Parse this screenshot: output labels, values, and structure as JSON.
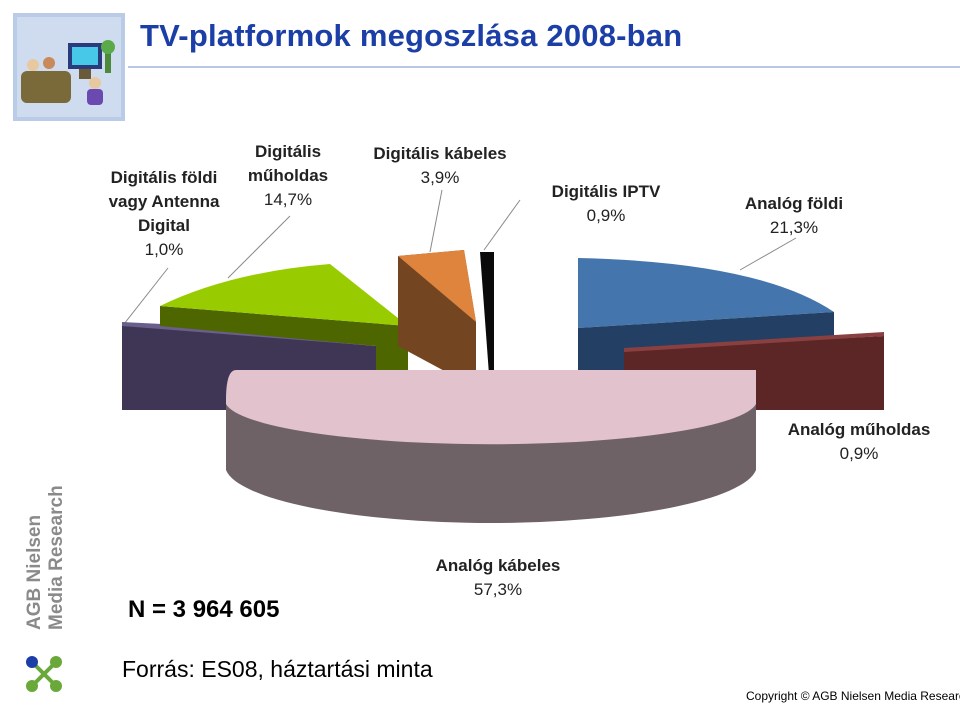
{
  "title": "TV-platformok megoszlása 2008-ban",
  "sample": "N = 3 964 605",
  "source": "Forrás: ES08, háztartási minta",
  "copyright": "Copyright © AGB Nielsen Media Research",
  "brand": {
    "line1": "AGB Nielsen",
    "line2": "Media Research"
  },
  "chart_data": {
    "type": "pie",
    "title": "TV-platformok megoszlása 2008-ban",
    "unit": "%",
    "slices": [
      {
        "name": "Analóg kábeles",
        "value_label": "57,3%",
        "value": 57.3,
        "color": "#e2c3cd"
      },
      {
        "name": "Analóg földi",
        "value_label": "21,3%",
        "value": 21.3,
        "color": "#4575ad"
      },
      {
        "name": "Analóg műholdas",
        "value_label": "0,9%",
        "value": 0.9,
        "color": "#5c2626"
      },
      {
        "name": "Digitális földi vagy Antenna Digital",
        "value_label": "1,0%",
        "value": 1.0,
        "color": "#3f3656"
      },
      {
        "name": "Digitális műholdas",
        "value_label": "14,7%",
        "value": 14.7,
        "color": "#99cc00"
      },
      {
        "name": "Digitális kábeles",
        "value_label": "3,9%",
        "value": 3.9,
        "color": "#de843c"
      },
      {
        "name": "Digitális IPTV",
        "value_label": "0,9%",
        "value": 0.9,
        "color": "#0a0a0a"
      }
    ]
  }
}
